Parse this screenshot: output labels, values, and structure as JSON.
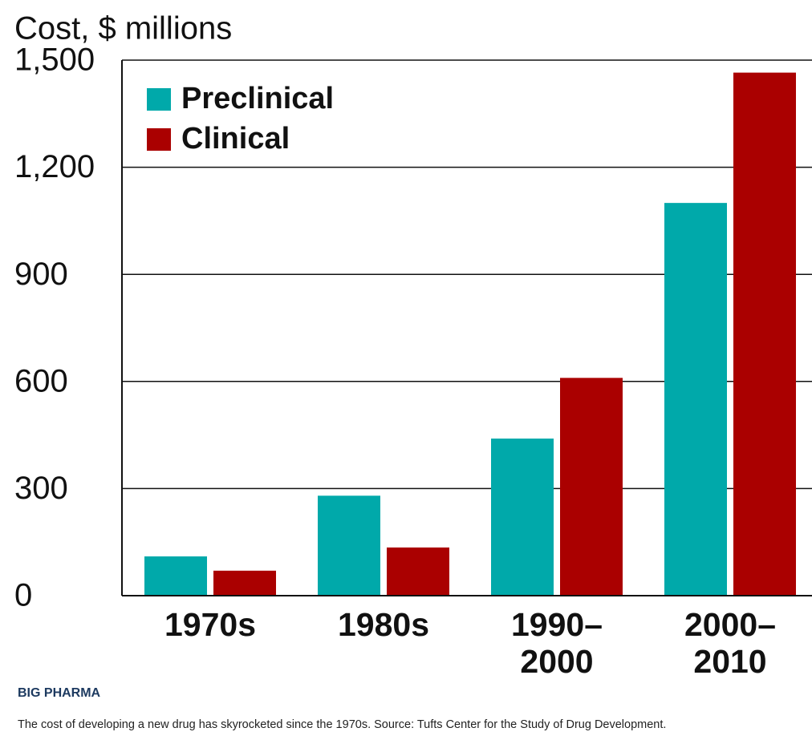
{
  "chart_data": {
    "type": "bar",
    "title": "Cost, $ millions",
    "categories": [
      "1970s",
      "1980s",
      "1990–\n2000",
      "2000–\n2010"
    ],
    "series": [
      {
        "name": "Preclinical",
        "color": "#00a9aa",
        "values": [
          110,
          280,
          440,
          1100
        ]
      },
      {
        "name": "Clinical",
        "color": "#aa0000",
        "values": [
          70,
          135,
          610,
          1465
        ]
      }
    ],
    "ylim": [
      0,
      1500
    ],
    "yticks": [
      0,
      300,
      600,
      900,
      {
        "value": 1200,
        "label": "1,200"
      },
      {
        "value": 1500,
        "label": "1,500"
      }
    ],
    "grid": true,
    "legend": "top-left"
  },
  "caption": {
    "heading": "BIG PHARMA",
    "text": "The cost of developing a new drug has skyrocketed since the 1970s. Source: Tufts Center for the Study of Drug Development."
  }
}
